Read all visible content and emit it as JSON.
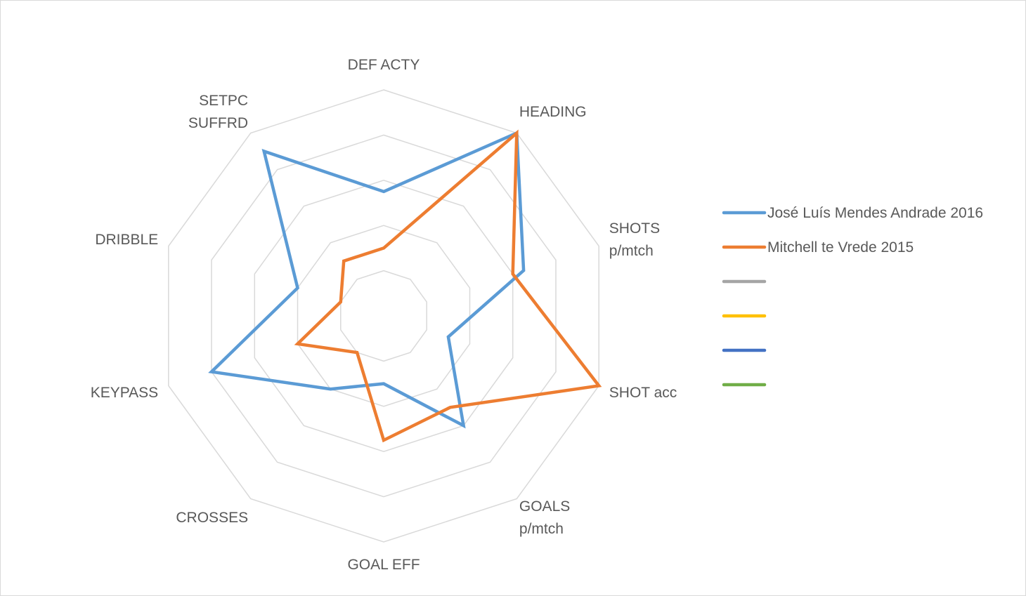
{
  "chart_data": {
    "type": "radar",
    "axes": [
      {
        "lines": [
          "DEF ACTY"
        ]
      },
      {
        "lines": [
          "HEADING"
        ]
      },
      {
        "lines": [
          "SHOTS",
          "p/mtch"
        ]
      },
      {
        "lines": [
          "SHOT acc"
        ]
      },
      {
        "lines": [
          "GOALS",
          "p/mtch"
        ]
      },
      {
        "lines": [
          "GOAL EFF"
        ]
      },
      {
        "lines": [
          "CROSSES"
        ]
      },
      {
        "lines": [
          "KEYPASS"
        ]
      },
      {
        "lines": [
          "DRIBBLE"
        ]
      },
      {
        "lines": [
          "SETPC",
          "SUFFRD"
        ]
      }
    ],
    "rlim": [
      0,
      1
    ],
    "grid_rings": 5,
    "series": [
      {
        "name": "José Luís Mendes Andrade 2016",
        "color": "#5b9bd5",
        "values": [
          0.55,
          1.0,
          0.65,
          0.3,
          0.6,
          0.3,
          0.4,
          0.8,
          0.4,
          0.9
        ]
      },
      {
        "name": "Mitchell te Vrede 2015",
        "color": "#ed7d31",
        "values": [
          0.3,
          1.0,
          0.6,
          1.0,
          0.5,
          0.55,
          0.2,
          0.4,
          0.2,
          0.3
        ]
      },
      {
        "name": "",
        "color": "#a5a5a5",
        "values": []
      },
      {
        "name": "",
        "color": "#ffc000",
        "values": []
      },
      {
        "name": "",
        "color": "#4472c4",
        "values": []
      },
      {
        "name": "",
        "color": "#70ad47",
        "values": []
      }
    ]
  }
}
